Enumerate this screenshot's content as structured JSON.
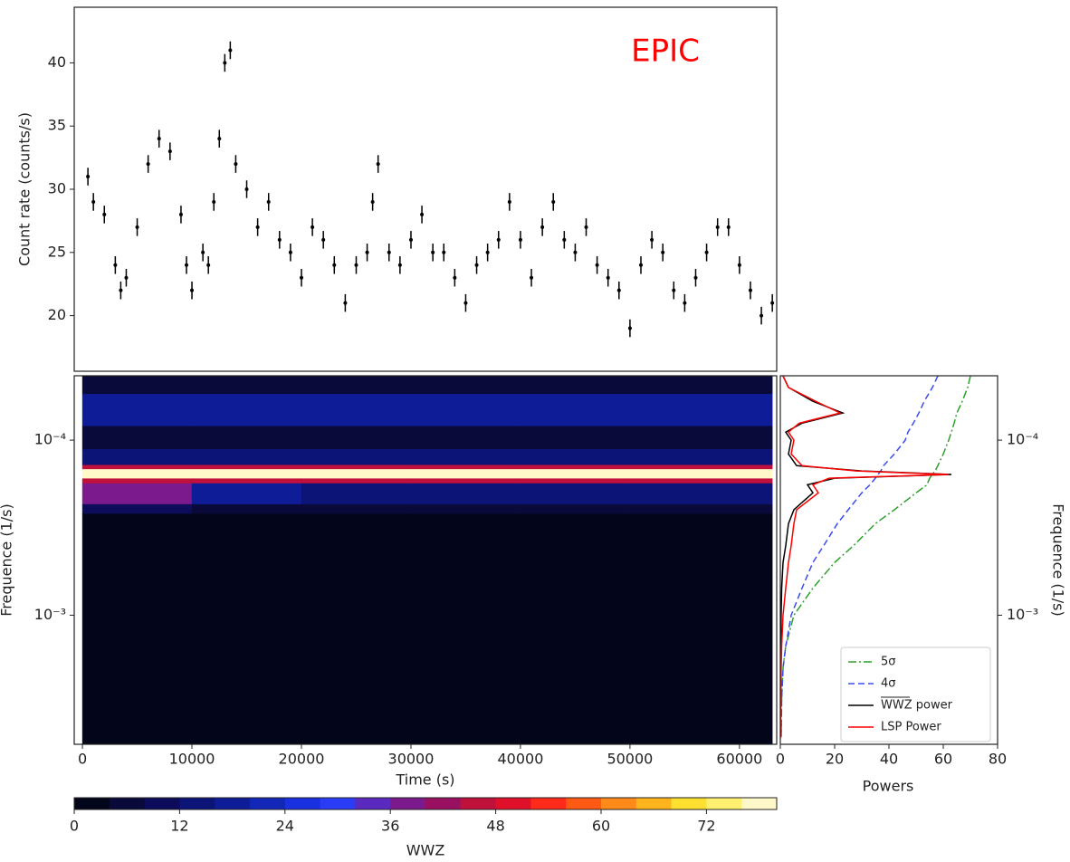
{
  "chart_data": [
    {
      "type": "errorbar",
      "annotation": "EPIC",
      "annotation_color": "#ff0000",
      "ylabel": "Count rate (counts/s)",
      "color": "#000000",
      "x": [
        500,
        1000,
        2000,
        3000,
        3500,
        4000,
        5000,
        6000,
        7000,
        8000,
        9000,
        9500,
        10000,
        11000,
        11500,
        12000,
        12500,
        13000,
        13500,
        14000,
        15000,
        16000,
        17000,
        18000,
        19000,
        20000,
        21000,
        22000,
        23000,
        24000,
        25000,
        26000,
        26500,
        27000,
        28000,
        29000,
        30000,
        31000,
        32000,
        33000,
        34000,
        35000,
        36000,
        37000,
        38000,
        39000,
        40000,
        41000,
        42000,
        43000,
        44000,
        45000,
        46000,
        47000,
        48000,
        49000,
        50000,
        51000,
        52000,
        53000,
        54000,
        55000,
        56000,
        57000,
        58000,
        59000,
        60000,
        61000,
        62000,
        63000
      ],
      "values": [
        31,
        29,
        28,
        24,
        22,
        23,
        27,
        32,
        34,
        33,
        28,
        24,
        22,
        25,
        24,
        29,
        34,
        40,
        41,
        32,
        30,
        27,
        29,
        26,
        25,
        23,
        27,
        26,
        24,
        21,
        24,
        25,
        29,
        32,
        25,
        24,
        26,
        28,
        25,
        25,
        23,
        21,
        24,
        25,
        26,
        29,
        26,
        23,
        27,
        29,
        26,
        25,
        27,
        24,
        23,
        22,
        19,
        24,
        26,
        25,
        22,
        21,
        23,
        25,
        27,
        27,
        24,
        22,
        20,
        21
      ],
      "yerr": 0.7,
      "xlim": [
        -750,
        63400
      ],
      "ylim": [
        15.6,
        44.4
      ],
      "yticks": [
        20,
        25,
        30,
        35,
        40
      ]
    },
    {
      "type": "heatmap",
      "xlabel": "Time (s)",
      "ylabel": "Frequence (1/s)",
      "log_y": true,
      "invert_y": true,
      "x_edges": [
        0,
        10000,
        20000,
        30000,
        40000,
        50000,
        63000
      ],
      "y_edges": [
        4.29e-05,
        5.46e-05,
        8.34e-05,
        0.000113,
        0.000139,
        0.000147,
        0.000166,
        0.000177,
        0.000233,
        0.000264,
        0.00546
      ],
      "z": [
        [
          4,
          4,
          4,
          4,
          4,
          4
        ],
        [
          16,
          16,
          16,
          16,
          16,
          16
        ],
        [
          4,
          4,
          4,
          4,
          4,
          4
        ],
        [
          12,
          12,
          12,
          12,
          12,
          12
        ],
        [
          44,
          44,
          44,
          44,
          44,
          44
        ],
        [
          76,
          76,
          76,
          76,
          76,
          76
        ],
        [
          44,
          44,
          44,
          44,
          44,
          44
        ],
        [
          36,
          16,
          14,
          12,
          12,
          12
        ],
        [
          8,
          6,
          4,
          4,
          4,
          4
        ],
        [
          0,
          0,
          0,
          0,
          0,
          0
        ]
      ],
      "xlim": [
        -750,
        63400
      ],
      "xticks": [
        0,
        10000,
        20000,
        30000,
        40000,
        50000,
        60000
      ],
      "ylim": [
        4.29e-05,
        0.00546
      ],
      "yticks": [
        {
          "value": 0.0001,
          "label": "10⁻⁴"
        },
        {
          "value": 0.001,
          "label": "10⁻³"
        }
      ],
      "colorbar": {
        "label": "WWZ",
        "lim": [
          0,
          80
        ],
        "ticks": [
          0,
          12,
          24,
          36,
          48,
          60,
          72
        ],
        "colors": [
          "#03051a",
          "#0a0a3a",
          "#0c0c5a",
          "#0d1478",
          "#0e1c98",
          "#1226b8",
          "#1830e0",
          "#2a3cf5",
          "#5a2ac0",
          "#7a1a8c",
          "#9a1060",
          "#c0103c",
          "#e0102a",
          "#ff2a1a",
          "#ff5a14",
          "#ff8a1a",
          "#ffb41e",
          "#ffe030",
          "#fff070",
          "#fff8c8"
        ]
      }
    },
    {
      "type": "line",
      "xlabel": "Powers",
      "ylabel": "Frequence (1/s)",
      "log_y": true,
      "invert_y": true,
      "legend": "lower right",
      "y": [
        4.3e-05,
        5e-05,
        6e-05,
        7e-05,
        8e-05,
        9e-05,
        0.0001,
        0.00012,
        0.00014,
        0.00015,
        0.000157,
        0.000165,
        0.00018,
        0.0002,
        0.00025,
        0.0003,
        0.0004,
        0.0005,
        0.0007,
        0.001,
        0.0015,
        0.002,
        0.003,
        0.005
      ],
      "series": [
        {
          "name": "5σ",
          "color": "#2ca02c",
          "dash": "dashdot",
          "values": [
            70,
            69,
            67,
            65,
            64,
            63,
            62,
            60,
            58,
            57,
            56,
            55,
            54,
            50,
            42,
            35,
            27,
            20,
            12,
            5,
            2,
            1,
            0.5,
            0.3
          ]
        },
        {
          "name": "4σ",
          "color": "#3b4cf0",
          "dash": "dashed",
          "values": [
            58,
            56,
            53,
            51,
            49,
            47,
            46,
            42,
            38,
            37,
            36,
            35,
            33,
            30,
            25,
            21,
            16,
            12,
            8,
            4,
            2,
            1,
            0.5,
            0.3
          ]
        },
        {
          "name": "WWZ power",
          "color": "#000000",
          "dash": "solid",
          "values": [
            1,
            3,
            12,
            23,
            8,
            2,
            4,
            3,
            6,
            30,
            63,
            20,
            10,
            12,
            5,
            3,
            2,
            1,
            0.5,
            0.3,
            0.2,
            0.1,
            0.1,
            0.1
          ]
        },
        {
          "name": "LSP Power",
          "color": "#ff0000",
          "dash": "solid",
          "values": [
            1,
            3,
            13,
            22,
            7,
            3,
            5,
            4,
            8,
            28,
            62,
            18,
            12,
            14,
            6,
            5,
            4,
            3,
            2,
            1,
            0.5,
            0.3,
            0.2,
            0.1
          ]
        }
      ],
      "xlim": [
        0,
        80
      ],
      "xticks": [
        0,
        20,
        40,
        60,
        80
      ],
      "ylim": [
        4.29e-05,
        0.00546
      ],
      "yticks": [
        {
          "value": 0.0001,
          "label": "10⁻⁴"
        },
        {
          "value": 0.001,
          "label": "10⁻³"
        }
      ]
    }
  ]
}
